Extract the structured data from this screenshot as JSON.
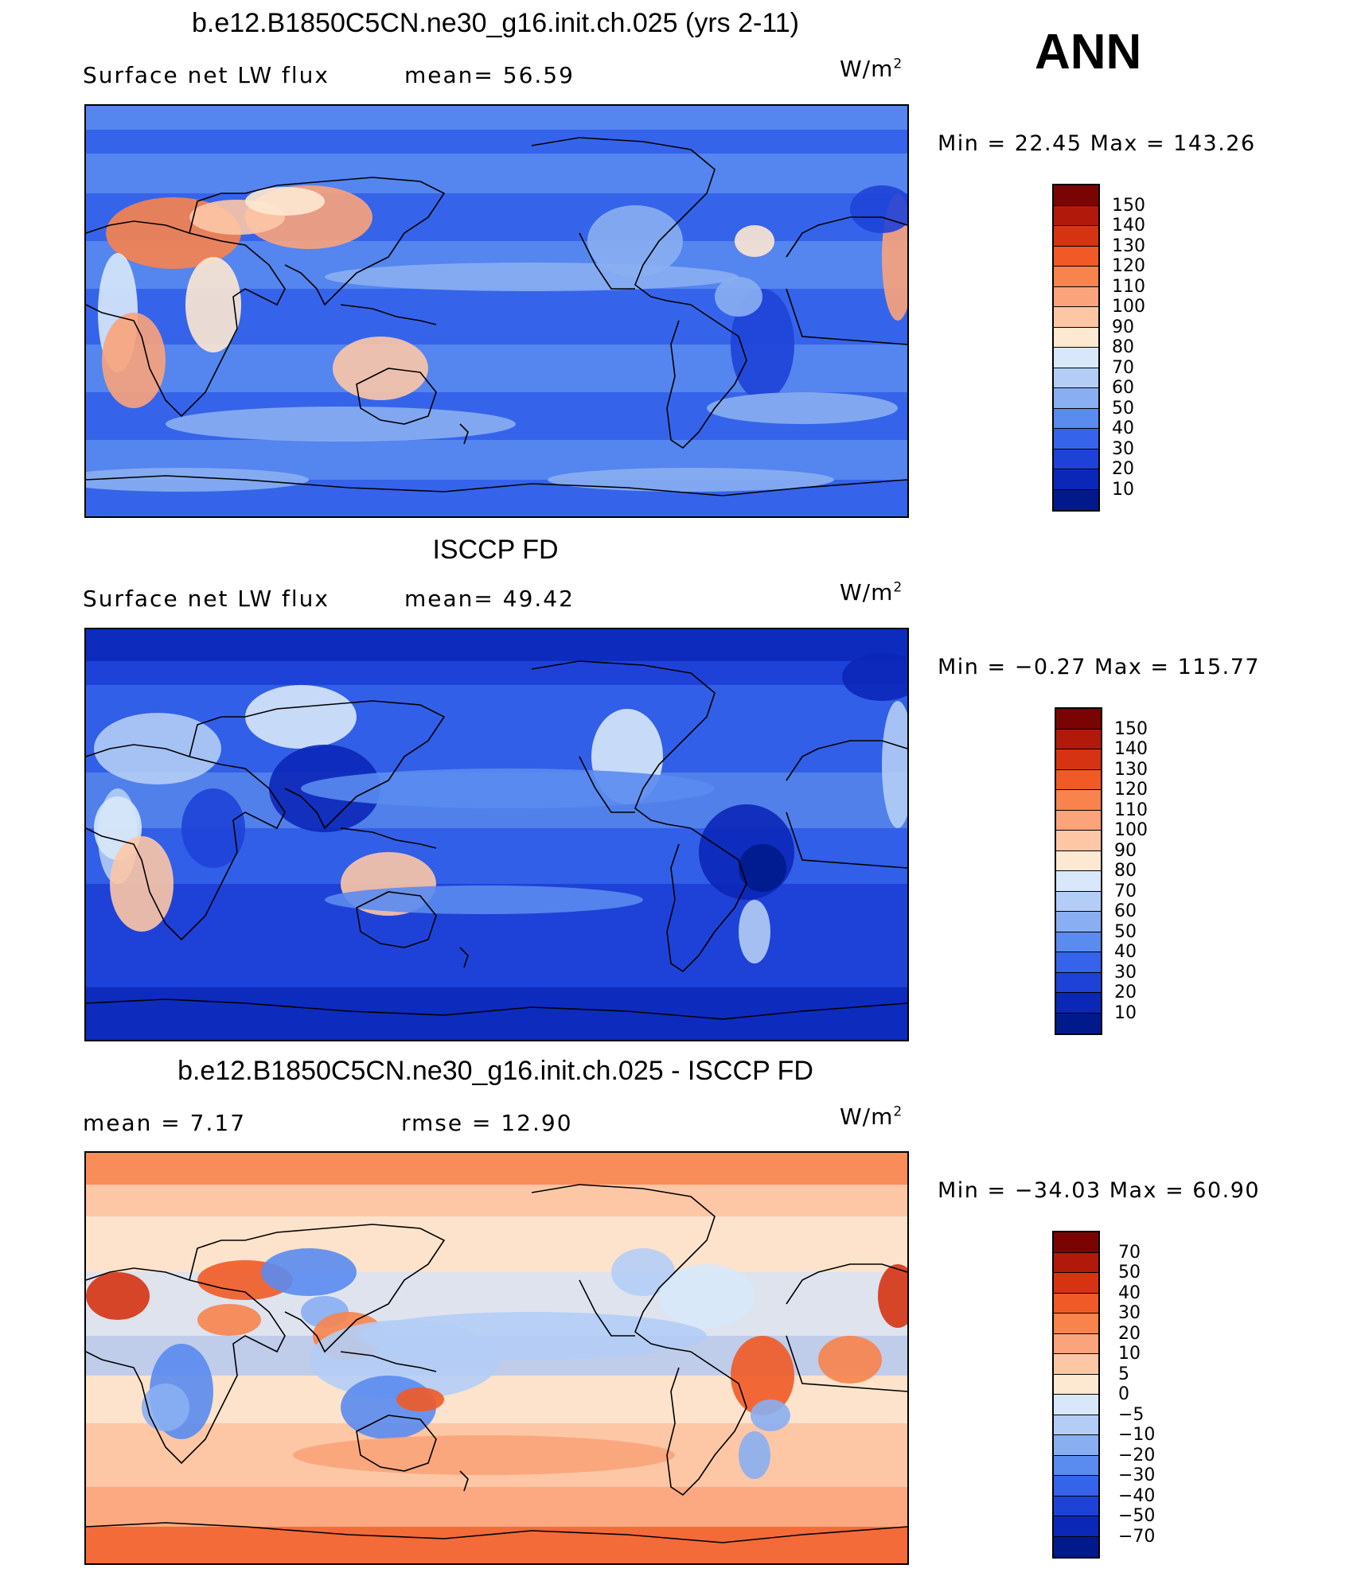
{
  "season": "ANN",
  "panels": [
    {
      "title": "b.e12.B1850C5CN.ne30_g16.init.ch.025 (yrs 2-11)",
      "left_label": "Surface  net  LW  flux",
      "mid_label": "mean=   56.59",
      "unit_base": "W/m",
      "unit_exp": "2",
      "minmax": "Min  =    22.45  Max  =  143.26",
      "palette": "abs",
      "colorbar_labels": [
        "150",
        "140",
        "130",
        "120",
        "110",
        "100",
        "90",
        "80",
        "70",
        "60",
        "50",
        "40",
        "30",
        "20",
        "10"
      ]
    },
    {
      "title": "ISCCP FD",
      "left_label": "Surface  net  LW  flux",
      "mid_label": "mean=   49.42",
      "unit_base": "W/m",
      "unit_exp": "2",
      "minmax": "Min  =    −0.27  Max  =  115.77",
      "palette": "abs",
      "colorbar_labels": [
        "150",
        "140",
        "130",
        "120",
        "110",
        "100",
        "90",
        "80",
        "70",
        "60",
        "50",
        "40",
        "30",
        "20",
        "10"
      ]
    },
    {
      "title": "b.e12.B1850C5CN.ne30_g16.init.ch.025 - ISCCP FD",
      "left_label": "mean  =     7.17",
      "mid_label": "rmse  =    12.90",
      "unit_base": "W/m",
      "unit_exp": "2",
      "minmax": "Min  =  −34.03  Max  =    60.90",
      "palette": "diff",
      "colorbar_labels": [
        "70",
        "50",
        "40",
        "30",
        "20",
        "10",
        "5",
        "0",
        "−5",
        "−10",
        "−20",
        "−30",
        "−40",
        "−50",
        "−70"
      ]
    }
  ],
  "colors": {
    "abs": [
      "#7a0403",
      "#b11a0a",
      "#d63312",
      "#f05a26",
      "#f8834c",
      "#fba37a",
      "#fdc7a6",
      "#fde8d2",
      "#d8e8fa",
      "#b4cdf6",
      "#8aaef2",
      "#5a8bef",
      "#3564ea",
      "#1e42d8",
      "#0b27b8",
      "#001a8c"
    ],
    "diff": [
      "#7a0403",
      "#b11a0a",
      "#d63312",
      "#f05a26",
      "#f8834c",
      "#fba37a",
      "#fdc7a6",
      "#fde8d2",
      "#d8e8fa",
      "#b4cdf6",
      "#8aaef2",
      "#5a8bef",
      "#3564ea",
      "#1e42d8",
      "#0b27b8",
      "#001a8c"
    ]
  },
  "chart_data": [
    {
      "type": "heatmap",
      "title": "b.e12.B1850C5CN.ne30_g16.init.ch.025 (yrs 2-11)",
      "variable": "Surface net LW flux",
      "units": "W/m2",
      "mean": 56.59,
      "min": 22.45,
      "max": 143.26,
      "contour_levels": [
        10,
        20,
        30,
        40,
        50,
        60,
        70,
        80,
        90,
        100,
        110,
        120,
        130,
        140,
        150
      ]
    },
    {
      "type": "heatmap",
      "title": "ISCCP FD",
      "variable": "Surface net LW flux",
      "units": "W/m2",
      "mean": 49.42,
      "min": -0.27,
      "max": 115.77,
      "contour_levels": [
        10,
        20,
        30,
        40,
        50,
        60,
        70,
        80,
        90,
        100,
        110,
        120,
        130,
        140,
        150
      ]
    },
    {
      "type": "heatmap",
      "title": "b.e12.B1850C5CN.ne30_g16.init.ch.025 - ISCCP FD",
      "units": "W/m2",
      "mean": 7.17,
      "rmse": 12.9,
      "min": -34.03,
      "max": 60.9,
      "contour_levels": [
        -70,
        -50,
        -40,
        -30,
        -20,
        -10,
        -5,
        0,
        5,
        10,
        20,
        30,
        40,
        50,
        70
      ]
    }
  ]
}
